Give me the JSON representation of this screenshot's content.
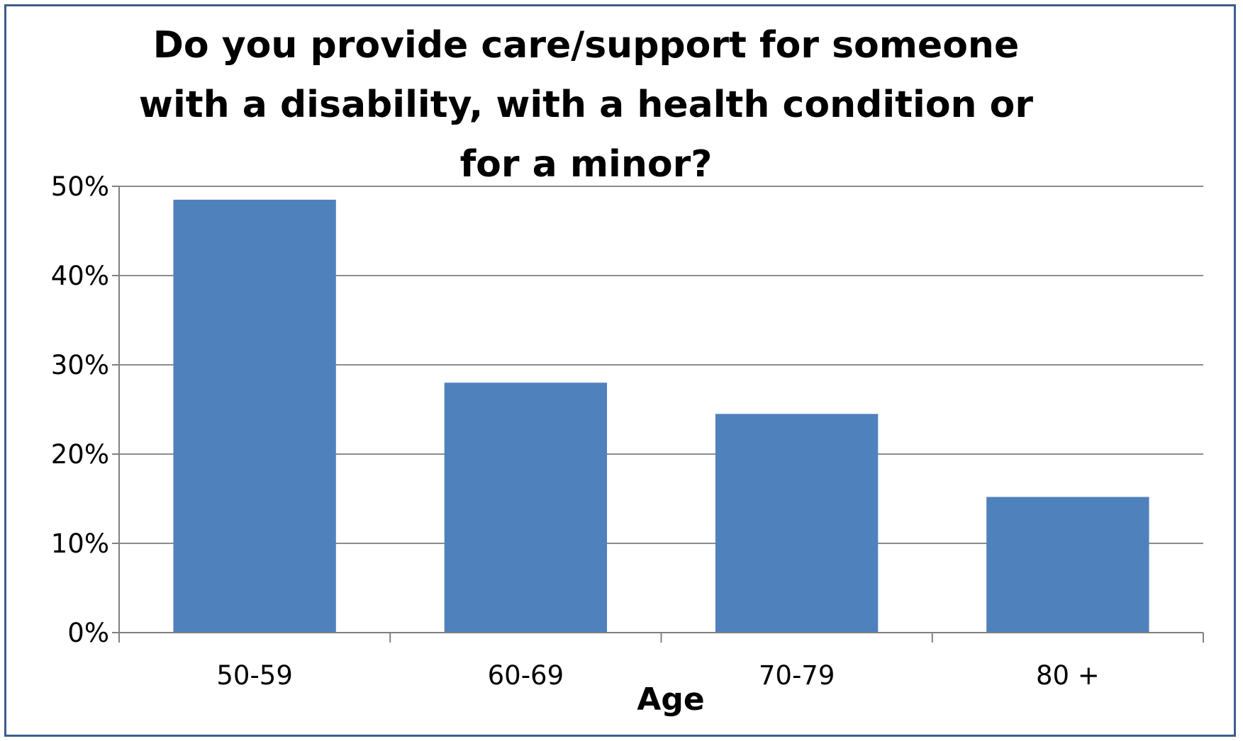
{
  "chart_data": {
    "type": "bar",
    "title": "Do you provide care/support for someone with a disability, with a health condition or for a minor?",
    "xlabel": "Age",
    "ylabel": "",
    "categories": [
      "50-59",
      "60-69",
      "70-79",
      "80 +"
    ],
    "values": [
      48.5,
      28,
      24.5,
      15.2
    ],
    "ylim": [
      0,
      50
    ],
    "yticks": [
      0,
      10,
      20,
      30,
      40,
      50
    ],
    "ytick_labels": [
      "0%",
      "10%",
      "20%",
      "30%",
      "40%",
      "50%"
    ],
    "grid": true,
    "legend": "none",
    "colors": {
      "bar": "#4f81bd",
      "gridline": "#8c8c8c",
      "axis": "#808080",
      "border": "#3a5d8f"
    }
  }
}
